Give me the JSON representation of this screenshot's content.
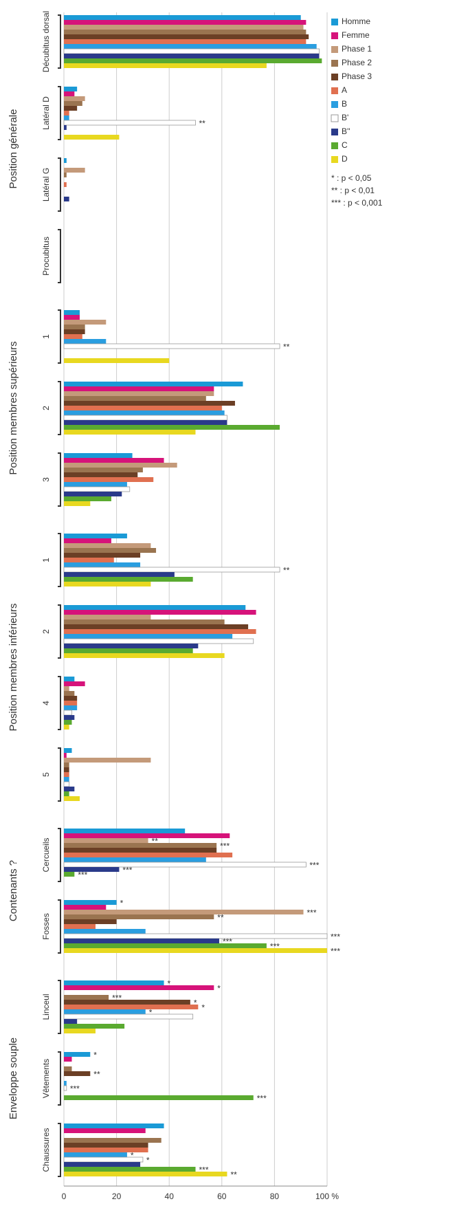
{
  "chart_data": {
    "type": "bar",
    "orientation": "horizontal",
    "groups": [
      {
        "label": "Position générale",
        "size": 4
      },
      {
        "label": "Position membres supérieurs",
        "size": 3
      },
      {
        "label": "Position membres inférieurs",
        "size": 4
      },
      {
        "label": "Contenants ?",
        "size": 2
      },
      {
        "label": "Enveloppe souple",
        "size": 3
      }
    ],
    "categories": [
      "Décubitus dorsal",
      "Latéral D",
      "Latéral G",
      "Procubitus",
      "1",
      "2",
      "3",
      "1",
      "2",
      "4",
      "5",
      "Cercueils",
      "Fosses",
      "Linceul",
      "Vêtements",
      "Chaussures"
    ],
    "series": [
      {
        "name": "Homme",
        "color": "#1a9ad6",
        "values": [
          90,
          5,
          1,
          0,
          6,
          68,
          26,
          24,
          69,
          4,
          3,
          46,
          20,
          38,
          10,
          38
        ],
        "annotations": [
          null,
          null,
          null,
          null,
          null,
          null,
          null,
          null,
          null,
          null,
          null,
          null,
          "*",
          "*",
          "*",
          null
        ]
      },
      {
        "name": "Femme",
        "color": "#d6137a",
        "values": [
          92,
          4,
          0,
          0,
          6,
          57,
          38,
          18,
          73,
          8,
          1,
          63,
          16,
          57,
          3,
          31
        ],
        "annotations": [
          null,
          null,
          null,
          null,
          null,
          null,
          null,
          null,
          null,
          null,
          null,
          null,
          null,
          "*",
          null,
          null
        ]
      },
      {
        "name": "Phase 1",
        "color": "#c49a7a",
        "values": [
          91,
          8,
          8,
          0,
          16,
          57,
          43,
          33,
          33,
          2,
          33,
          32,
          91,
          0,
          0,
          0
        ],
        "annotations": [
          null,
          null,
          null,
          null,
          null,
          null,
          null,
          null,
          null,
          null,
          null,
          "**",
          "***",
          null,
          null,
          null
        ]
      },
      {
        "name": "Phase 2",
        "color": "#9a7450",
        "values": [
          92,
          7,
          1,
          0,
          8,
          54,
          30,
          35,
          61,
          4,
          2,
          58,
          57,
          17,
          3,
          37
        ],
        "annotations": [
          null,
          null,
          null,
          null,
          null,
          null,
          null,
          null,
          null,
          null,
          null,
          "***",
          "**",
          "***",
          null,
          null
        ]
      },
      {
        "name": "Phase 3",
        "color": "#6b3f25",
        "values": [
          93,
          5,
          0,
          0,
          8,
          65,
          28,
          29,
          70,
          5,
          2,
          58,
          20,
          48,
          10,
          32
        ],
        "annotations": [
          null,
          null,
          null,
          null,
          null,
          null,
          null,
          null,
          null,
          null,
          null,
          null,
          null,
          "*",
          "**",
          null
        ]
      },
      {
        "name": "A",
        "color": "#e07050",
        "values": [
          92,
          2,
          1,
          0,
          7,
          60,
          34,
          19,
          73,
          5,
          2,
          64,
          12,
          51,
          0,
          32
        ],
        "annotations": [
          null,
          null,
          null,
          null,
          null,
          null,
          null,
          null,
          null,
          null,
          null,
          null,
          null,
          "*",
          null,
          null
        ]
      },
      {
        "name": "B",
        "color": "#2a9ee0",
        "values": [
          96,
          2,
          0,
          0,
          16,
          61,
          24,
          29,
          64,
          5,
          2,
          54,
          31,
          31,
          1,
          24
        ],
        "annotations": [
          null,
          null,
          null,
          null,
          null,
          null,
          null,
          null,
          null,
          null,
          null,
          null,
          null,
          "*",
          null,
          "*"
        ]
      },
      {
        "name": "B'",
        "color": "#ffffff",
        "values": [
          97,
          50,
          0,
          0,
          82,
          62,
          25,
          82,
          72,
          3,
          2,
          92,
          100,
          49,
          1,
          30
        ],
        "annotations": [
          null,
          "**",
          null,
          null,
          "**",
          null,
          null,
          "**",
          null,
          null,
          null,
          "***",
          "***",
          null,
          "***",
          "*"
        ]
      },
      {
        "name": "B''",
        "color": "#2a3a8a",
        "values": [
          97,
          1,
          2,
          0,
          0,
          62,
          22,
          42,
          51,
          4,
          4,
          21,
          59,
          5,
          0,
          29
        ],
        "annotations": [
          null,
          null,
          null,
          null,
          null,
          null,
          null,
          null,
          null,
          null,
          null,
          "***",
          "***",
          null,
          null,
          null
        ]
      },
      {
        "name": "C",
        "color": "#5aaa30",
        "values": [
          98,
          0,
          0,
          0,
          0,
          82,
          18,
          49,
          49,
          3,
          2,
          4,
          77,
          23,
          72,
          50
        ],
        "annotations": [
          null,
          null,
          null,
          null,
          null,
          null,
          null,
          null,
          null,
          null,
          null,
          "***",
          "***",
          null,
          "***",
          "***"
        ]
      },
      {
        "name": "D",
        "color": "#e8d820",
        "values": [
          77,
          21,
          0,
          0,
          40,
          50,
          10,
          33,
          61,
          2,
          6,
          0,
          100,
          12,
          0,
          62
        ],
        "annotations": [
          null,
          null,
          null,
          null,
          null,
          null,
          null,
          null,
          null,
          null,
          null,
          null,
          "***",
          null,
          null,
          "**"
        ]
      }
    ],
    "notes": [
      "* : p < 0,05",
      "** : p < 0,01",
      "*** : p < 0,001"
    ],
    "xlim": [
      0,
      100
    ],
    "xticks": [
      0,
      20,
      40,
      60,
      80,
      {
        "value": 100,
        "label": "100 %"
      }
    ],
    "grid": true,
    "legend": "top-right"
  }
}
